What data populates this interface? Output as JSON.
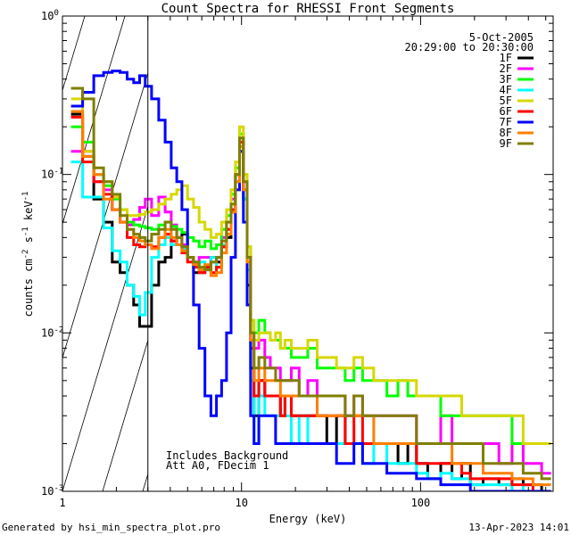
{
  "chart_data": {
    "type": "line",
    "title": "Count Spectra for RHESSI Front Segments",
    "xlabel": "Energy (keV)",
    "ylabel_main": "counts cm",
    "ylabel_exp1": "-2",
    "ylabel_mid1": " s",
    "ylabel_exp2": "-1",
    "ylabel_mid2": " keV",
    "ylabel_exp3": "-1",
    "xscale": "log",
    "yscale": "log",
    "xlim": [
      1,
      550
    ],
    "ylim": [
      0.001,
      1
    ],
    "x_ticks": [
      {
        "value": 1,
        "label": "1"
      },
      {
        "value": 10,
        "label": "10"
      },
      {
        "value": 100,
        "label": "100"
      }
    ],
    "y_ticks": [
      {
        "value": 0.001,
        "base": "10",
        "exp": "-3"
      },
      {
        "value": 0.01,
        "base": "10",
        "exp": "-2"
      },
      {
        "value": 0.1,
        "base": "10",
        "exp": "-1"
      },
      {
        "value": 1,
        "base": "10",
        "exp": "0"
      }
    ],
    "attenuation_threshold_kev": 3,
    "date": "5-Oct-2005",
    "time_range": "20:29:00 to 20:30:00",
    "annotation_lines": [
      "Includes Background",
      "Att A0, FDecim 1"
    ],
    "series": [
      {
        "name": "1F",
        "color": "#000000",
        "x": [
          1.2,
          1.4,
          1.6,
          1.8,
          2.0,
          2.2,
          2.4,
          2.6,
          2.8,
          3.0,
          3.3,
          3.6,
          3.9,
          4.2,
          4.5,
          4.8,
          5.2,
          5.6,
          6.0,
          6.5,
          7.0,
          7.5,
          8.0,
          8.5,
          9.0,
          9.5,
          10.0,
          10.5,
          11.0,
          11.5,
          12.0,
          13,
          14,
          15,
          16,
          17,
          18,
          20,
          22,
          25,
          28,
          32,
          36,
          40,
          45,
          50,
          60,
          70,
          80,
          90,
          100,
          120,
          140,
          160,
          180,
          200,
          250,
          300,
          350,
          400,
          450,
          500
        ],
        "y": [
          0.24,
          0.13,
          0.07,
          0.05,
          0.028,
          0.024,
          0.02,
          0.015,
          0.011,
          0.011,
          0.02,
          0.028,
          0.03,
          0.038,
          0.04,
          0.042,
          0.03,
          0.024,
          0.024,
          0.026,
          0.03,
          0.028,
          0.035,
          0.04,
          0.058,
          0.09,
          0.14,
          0.07,
          0.02,
          0.006,
          0.003,
          0.005,
          0.004,
          0.004,
          0.004,
          0.003,
          0.004,
          0.003,
          0.003,
          0.003,
          0.003,
          0.002,
          0.003,
          0.002,
          0.002,
          0.002,
          0.002,
          0.002,
          0.0015,
          0.002,
          0.0015,
          0.0012,
          0.0015,
          0.0012,
          0.0015,
          0.0011,
          0.0012,
          0.0011,
          0.0012,
          0.0011,
          0.0011,
          0.001
        ]
      },
      {
        "name": "2F",
        "color": "#ff00ff",
        "x": [
          1.2,
          1.4,
          1.6,
          1.8,
          2.0,
          2.2,
          2.4,
          2.6,
          2.8,
          3.0,
          3.3,
          3.6,
          3.9,
          4.2,
          4.5,
          4.8,
          5.2,
          5.6,
          6.0,
          6.5,
          7.0,
          7.5,
          8.0,
          8.5,
          9.0,
          9.5,
          10.0,
          10.5,
          11.0,
          11.5,
          12.0,
          13,
          14,
          15,
          16,
          17,
          18,
          20,
          22,
          25,
          28,
          32,
          36,
          40,
          45,
          50,
          60,
          70,
          80,
          90,
          100,
          120,
          140,
          160,
          180,
          200,
          250,
          300,
          350,
          400,
          450,
          500
        ],
        "y": [
          0.14,
          0.14,
          0.09,
          0.08,
          0.06,
          0.05,
          0.048,
          0.052,
          0.062,
          0.07,
          0.055,
          0.072,
          0.058,
          0.048,
          0.04,
          0.036,
          0.03,
          0.028,
          0.03,
          0.03,
          0.028,
          0.03,
          0.04,
          0.05,
          0.07,
          0.1,
          0.17,
          0.09,
          0.03,
          0.01,
          0.008,
          0.009,
          0.007,
          0.006,
          0.006,
          0.005,
          0.005,
          0.006,
          0.004,
          0.005,
          0.004,
          0.004,
          0.004,
          0.003,
          0.004,
          0.003,
          0.003,
          0.003,
          0.003,
          0.003,
          0.002,
          0.002,
          0.003,
          0.002,
          0.002,
          0.002,
          0.002,
          0.0015,
          0.002,
          0.0015,
          0.0015,
          0.0013
        ]
      },
      {
        "name": "3F",
        "color": "#00ff00",
        "x": [
          1.2,
          1.4,
          1.6,
          1.8,
          2.0,
          2.2,
          2.4,
          2.6,
          2.8,
          3.0,
          3.3,
          3.6,
          3.9,
          4.2,
          4.5,
          4.8,
          5.2,
          5.6,
          6.0,
          6.5,
          7.0,
          7.5,
          8.0,
          8.5,
          9.0,
          9.5,
          10.0,
          10.5,
          11.0,
          11.5,
          12.0,
          13,
          14,
          15,
          16,
          17,
          18,
          20,
          22,
          25,
          28,
          32,
          36,
          40,
          45,
          50,
          60,
          70,
          80,
          90,
          100,
          120,
          140,
          160,
          180,
          200,
          250,
          300,
          350,
          400,
          450,
          500
        ],
        "y": [
          0.2,
          0.16,
          0.1,
          0.085,
          0.07,
          0.06,
          0.05,
          0.048,
          0.047,
          0.046,
          0.045,
          0.048,
          0.05,
          0.047,
          0.045,
          0.043,
          0.04,
          0.038,
          0.035,
          0.038,
          0.034,
          0.036,
          0.045,
          0.055,
          0.075,
          0.11,
          0.18,
          0.1,
          0.035,
          0.012,
          0.01,
          0.012,
          0.01,
          0.009,
          0.009,
          0.008,
          0.008,
          0.007,
          0.007,
          0.008,
          0.006,
          0.006,
          0.006,
          0.005,
          0.006,
          0.005,
          0.005,
          0.004,
          0.005,
          0.004,
          0.004,
          0.004,
          0.003,
          0.003,
          0.003,
          0.003,
          0.003,
          0.003,
          0.002,
          0.002,
          0.002,
          0.002
        ]
      },
      {
        "name": "4F",
        "color": "#00ffff",
        "x": [
          1.2,
          1.4,
          1.6,
          1.8,
          2.0,
          2.2,
          2.4,
          2.6,
          2.8,
          3.0,
          3.3,
          3.6,
          3.9,
          4.2,
          4.5,
          4.8,
          5.2,
          5.6,
          6.0,
          6.5,
          7.0,
          7.5,
          8.0,
          8.5,
          9.0,
          9.5,
          10.0,
          10.5,
          11.0,
          11.5,
          12.0,
          13,
          14,
          15,
          16,
          17,
          18,
          20,
          22,
          25,
          28,
          32,
          36,
          40,
          45,
          50,
          60,
          70,
          80,
          90,
          100,
          120,
          140,
          160,
          180,
          200,
          250,
          300,
          350,
          400,
          450,
          500
        ],
        "y": [
          0.12,
          0.072,
          0.072,
          0.046,
          0.033,
          0.028,
          0.02,
          0.017,
          0.013,
          0.018,
          0.03,
          0.036,
          0.04,
          0.036,
          0.036,
          0.034,
          0.03,
          0.026,
          0.028,
          0.025,
          0.03,
          0.026,
          0.036,
          0.045,
          0.06,
          0.09,
          0.15,
          0.07,
          0.025,
          0.005,
          0.002,
          0.004,
          0.003,
          0.003,
          0.003,
          0.003,
          0.003,
          0.002,
          0.003,
          0.002,
          0.002,
          0.002,
          0.002,
          0.002,
          0.002,
          0.0015,
          0.002,
          0.0015,
          0.0015,
          0.0015,
          0.0013,
          0.0012,
          0.0013,
          0.0012,
          0.0012,
          0.0011,
          0.0011,
          0.0011,
          0.001,
          0.0011,
          0.001,
          0.001
        ]
      },
      {
        "name": "5F",
        "color": "#d7d700",
        "x": [
          1.2,
          1.4,
          1.6,
          1.8,
          2.0,
          2.2,
          2.4,
          2.6,
          2.8,
          3.0,
          3.3,
          3.6,
          3.9,
          4.2,
          4.5,
          4.8,
          5.2,
          5.6,
          6.0,
          6.5,
          7.0,
          7.5,
          8.0,
          8.5,
          9.0,
          9.5,
          10.0,
          10.5,
          11.0,
          11.5,
          12.0,
          13,
          14,
          15,
          16,
          17,
          18,
          20,
          22,
          25,
          28,
          32,
          36,
          40,
          45,
          50,
          60,
          70,
          80,
          90,
          100,
          120,
          140,
          160,
          180,
          200,
          250,
          300,
          350,
          400,
          450,
          500
        ],
        "y": [
          0.3,
          0.14,
          0.1,
          0.09,
          0.072,
          0.06,
          0.055,
          0.055,
          0.056,
          0.058,
          0.06,
          0.065,
          0.07,
          0.075,
          0.08,
          0.085,
          0.07,
          0.062,
          0.05,
          0.045,
          0.04,
          0.042,
          0.05,
          0.06,
          0.08,
          0.12,
          0.2,
          0.1,
          0.035,
          0.012,
          0.009,
          0.01,
          0.01,
          0.009,
          0.01,
          0.008,
          0.009,
          0.008,
          0.008,
          0.009,
          0.007,
          0.007,
          0.006,
          0.006,
          0.007,
          0.006,
          0.005,
          0.005,
          0.005,
          0.005,
          0.004,
          0.004,
          0.004,
          0.004,
          0.003,
          0.003,
          0.003,
          0.003,
          0.003,
          0.002,
          0.002,
          0.002
        ]
      },
      {
        "name": "6F",
        "color": "#ff0000",
        "x": [
          1.2,
          1.4,
          1.6,
          1.8,
          2.0,
          2.2,
          2.4,
          2.6,
          2.8,
          3.0,
          3.3,
          3.6,
          3.9,
          4.2,
          4.5,
          4.8,
          5.2,
          5.6,
          6.0,
          6.5,
          7.0,
          7.5,
          8.0,
          8.5,
          9.0,
          9.5,
          10.0,
          10.5,
          11.0,
          11.5,
          12.0,
          13,
          14,
          15,
          16,
          17,
          18,
          20,
          22,
          25,
          28,
          32,
          36,
          40,
          45,
          50,
          60,
          70,
          80,
          90,
          100,
          120,
          140,
          160,
          180,
          200,
          250,
          300,
          350,
          400,
          450,
          500
        ],
        "y": [
          0.23,
          0.12,
          0.09,
          0.075,
          0.06,
          0.05,
          0.04,
          0.036,
          0.035,
          0.036,
          0.035,
          0.04,
          0.042,
          0.038,
          0.036,
          0.032,
          0.028,
          0.026,
          0.024,
          0.026,
          0.024,
          0.026,
          0.035,
          0.045,
          0.06,
          0.1,
          0.16,
          0.08,
          0.03,
          0.008,
          0.004,
          0.005,
          0.004,
          0.004,
          0.004,
          0.003,
          0.004,
          0.003,
          0.003,
          0.003,
          0.003,
          0.003,
          0.003,
          0.002,
          0.003,
          0.002,
          0.002,
          0.002,
          0.002,
          0.002,
          0.0015,
          0.0015,
          0.0015,
          0.0015,
          0.0013,
          0.0012,
          0.0012,
          0.0012,
          0.0011,
          0.0011,
          0.001,
          0.001
        ]
      },
      {
        "name": "7F",
        "color": "#0000ff",
        "x": [
          1.2,
          1.4,
          1.6,
          1.8,
          2.0,
          2.2,
          2.4,
          2.6,
          2.8,
          3.0,
          3.3,
          3.6,
          3.9,
          4.2,
          4.5,
          4.8,
          5.2,
          5.6,
          6.0,
          6.5,
          7.0,
          7.5,
          8.0,
          8.5,
          9.0,
          9.5,
          10.0,
          10.5,
          11.0,
          11.5,
          12.0,
          13,
          14,
          15,
          16,
          17,
          18,
          20,
          22,
          25,
          28,
          32,
          36,
          40,
          45,
          50,
          60,
          70,
          80,
          90,
          100,
          120,
          140,
          160,
          180,
          200,
          250,
          300,
          350,
          400,
          450,
          500
        ],
        "y": [
          0.27,
          0.33,
          0.42,
          0.44,
          0.45,
          0.44,
          0.4,
          0.38,
          0.42,
          0.36,
          0.3,
          0.22,
          0.16,
          0.11,
          0.09,
          0.06,
          0.03,
          0.015,
          0.008,
          0.004,
          0.003,
          0.004,
          0.005,
          0.01,
          0.03,
          0.08,
          0.14,
          0.05,
          0.015,
          0.003,
          0.002,
          0.003,
          0.003,
          0.003,
          0.002,
          0.002,
          0.002,
          0.002,
          0.002,
          0.002,
          0.002,
          0.002,
          0.0015,
          0.0015,
          0.002,
          0.0015,
          0.0015,
          0.0013,
          0.0013,
          0.0013,
          0.0012,
          0.0012,
          0.0011,
          0.0011,
          0.0011,
          0.001,
          0.001,
          0.001,
          0.001,
          0.001,
          0.001,
          0.001
        ]
      },
      {
        "name": "8F",
        "color": "#ff7f00",
        "x": [
          1.2,
          1.4,
          1.6,
          1.8,
          2.0,
          2.2,
          2.4,
          2.6,
          2.8,
          3.0,
          3.3,
          3.6,
          3.9,
          4.2,
          4.5,
          4.8,
          5.2,
          5.6,
          6.0,
          6.5,
          7.0,
          7.5,
          8.0,
          8.5,
          9.0,
          9.5,
          10.0,
          10.5,
          11.0,
          11.5,
          12.0,
          13,
          14,
          15,
          16,
          17,
          18,
          20,
          22,
          25,
          28,
          32,
          36,
          40,
          45,
          50,
          60,
          70,
          80,
          90,
          100,
          120,
          140,
          160,
          180,
          200,
          250,
          300,
          350,
          400,
          450,
          500
        ],
        "y": [
          0.25,
          0.13,
          0.1,
          0.07,
          0.06,
          0.05,
          0.045,
          0.04,
          0.038,
          0.036,
          0.034,
          0.04,
          0.045,
          0.04,
          0.036,
          0.033,
          0.03,
          0.027,
          0.025,
          0.027,
          0.023,
          0.024,
          0.032,
          0.042,
          0.058,
          0.09,
          0.15,
          0.08,
          0.028,
          0.009,
          0.005,
          0.006,
          0.005,
          0.005,
          0.005,
          0.004,
          0.004,
          0.004,
          0.004,
          0.004,
          0.003,
          0.003,
          0.003,
          0.003,
          0.003,
          0.003,
          0.002,
          0.002,
          0.002,
          0.002,
          0.002,
          0.002,
          0.002,
          0.0015,
          0.0015,
          0.0015,
          0.0013,
          0.0013,
          0.0012,
          0.0012,
          0.0011,
          0.0011
        ]
      },
      {
        "name": "9F",
        "color": "#7f7f00",
        "x": [
          1.2,
          1.4,
          1.6,
          1.8,
          2.0,
          2.2,
          2.4,
          2.6,
          2.8,
          3.0,
          3.3,
          3.6,
          3.9,
          4.2,
          4.5,
          4.8,
          5.2,
          5.6,
          6.0,
          6.5,
          7.0,
          7.5,
          8.0,
          8.5,
          9.0,
          9.5,
          10.0,
          10.5,
          11.0,
          11.5,
          12.0,
          13,
          14,
          15,
          16,
          17,
          18,
          20,
          22,
          25,
          28,
          32,
          36,
          40,
          45,
          50,
          60,
          70,
          80,
          90,
          100,
          120,
          140,
          160,
          180,
          200,
          250,
          300,
          350,
          400,
          450,
          500
        ],
        "y": [
          0.35,
          0.3,
          0.11,
          0.09,
          0.075,
          0.055,
          0.045,
          0.042,
          0.04,
          0.038,
          0.042,
          0.045,
          0.05,
          0.045,
          0.04,
          0.035,
          0.03,
          0.028,
          0.026,
          0.025,
          0.028,
          0.03,
          0.038,
          0.05,
          0.065,
          0.1,
          0.17,
          0.09,
          0.03,
          0.01,
          0.006,
          0.007,
          0.006,
          0.006,
          0.005,
          0.005,
          0.005,
          0.005,
          0.004,
          0.004,
          0.004,
          0.004,
          0.004,
          0.003,
          0.004,
          0.003,
          0.003,
          0.003,
          0.003,
          0.003,
          0.002,
          0.002,
          0.002,
          0.002,
          0.002,
          0.002,
          0.0015,
          0.0015,
          0.0015,
          0.0013,
          0.0013,
          0.0012
        ]
      }
    ]
  },
  "footer": {
    "generated_by": "Generated by hsi_min_spectra_plot.pro",
    "timestamp": "13-Apr-2023 14:01"
  }
}
